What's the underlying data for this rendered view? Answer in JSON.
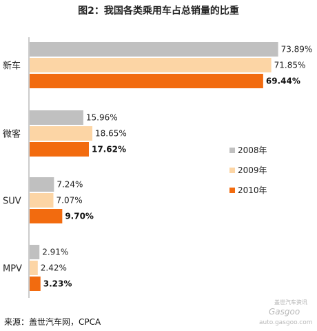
{
  "chart_data": {
    "type": "bar",
    "orientation": "horizontal",
    "title": "图2：我国各类乘用车占总销量的比重",
    "categories": [
      "新车",
      "微客",
      "SUV",
      "MPV"
    ],
    "series": [
      {
        "name": "2008年",
        "values": [
          73.89,
          15.96,
          7.24,
          2.91
        ],
        "labels": [
          "73.89%",
          "15.96%",
          "7.24%",
          "2.91%"
        ],
        "color": "#c0c0c0",
        "bold": false
      },
      {
        "name": "2009年",
        "values": [
          71.85,
          18.65,
          7.07,
          2.42
        ],
        "labels": [
          "71.85%",
          "18.65%",
          "7.07%",
          "2.42%"
        ],
        "color": "#fcd5a5",
        "bold": false
      },
      {
        "name": "2010年",
        "values": [
          69.44,
          17.62,
          9.7,
          3.23
        ],
        "labels": [
          "69.44%",
          "17.62%",
          "9.70%",
          "3.23%"
        ],
        "color": "#f26b0f",
        "bold": true
      }
    ],
    "xlim": [
      0,
      100
    ],
    "legend": "right",
    "grid": false
  },
  "source": "来源：盖世汽车网，CPCA",
  "watermark": {
    "line1": "盖世汽车资讯",
    "line2": "Gasgoo",
    "line3": "auto.gasgoo.com"
  }
}
